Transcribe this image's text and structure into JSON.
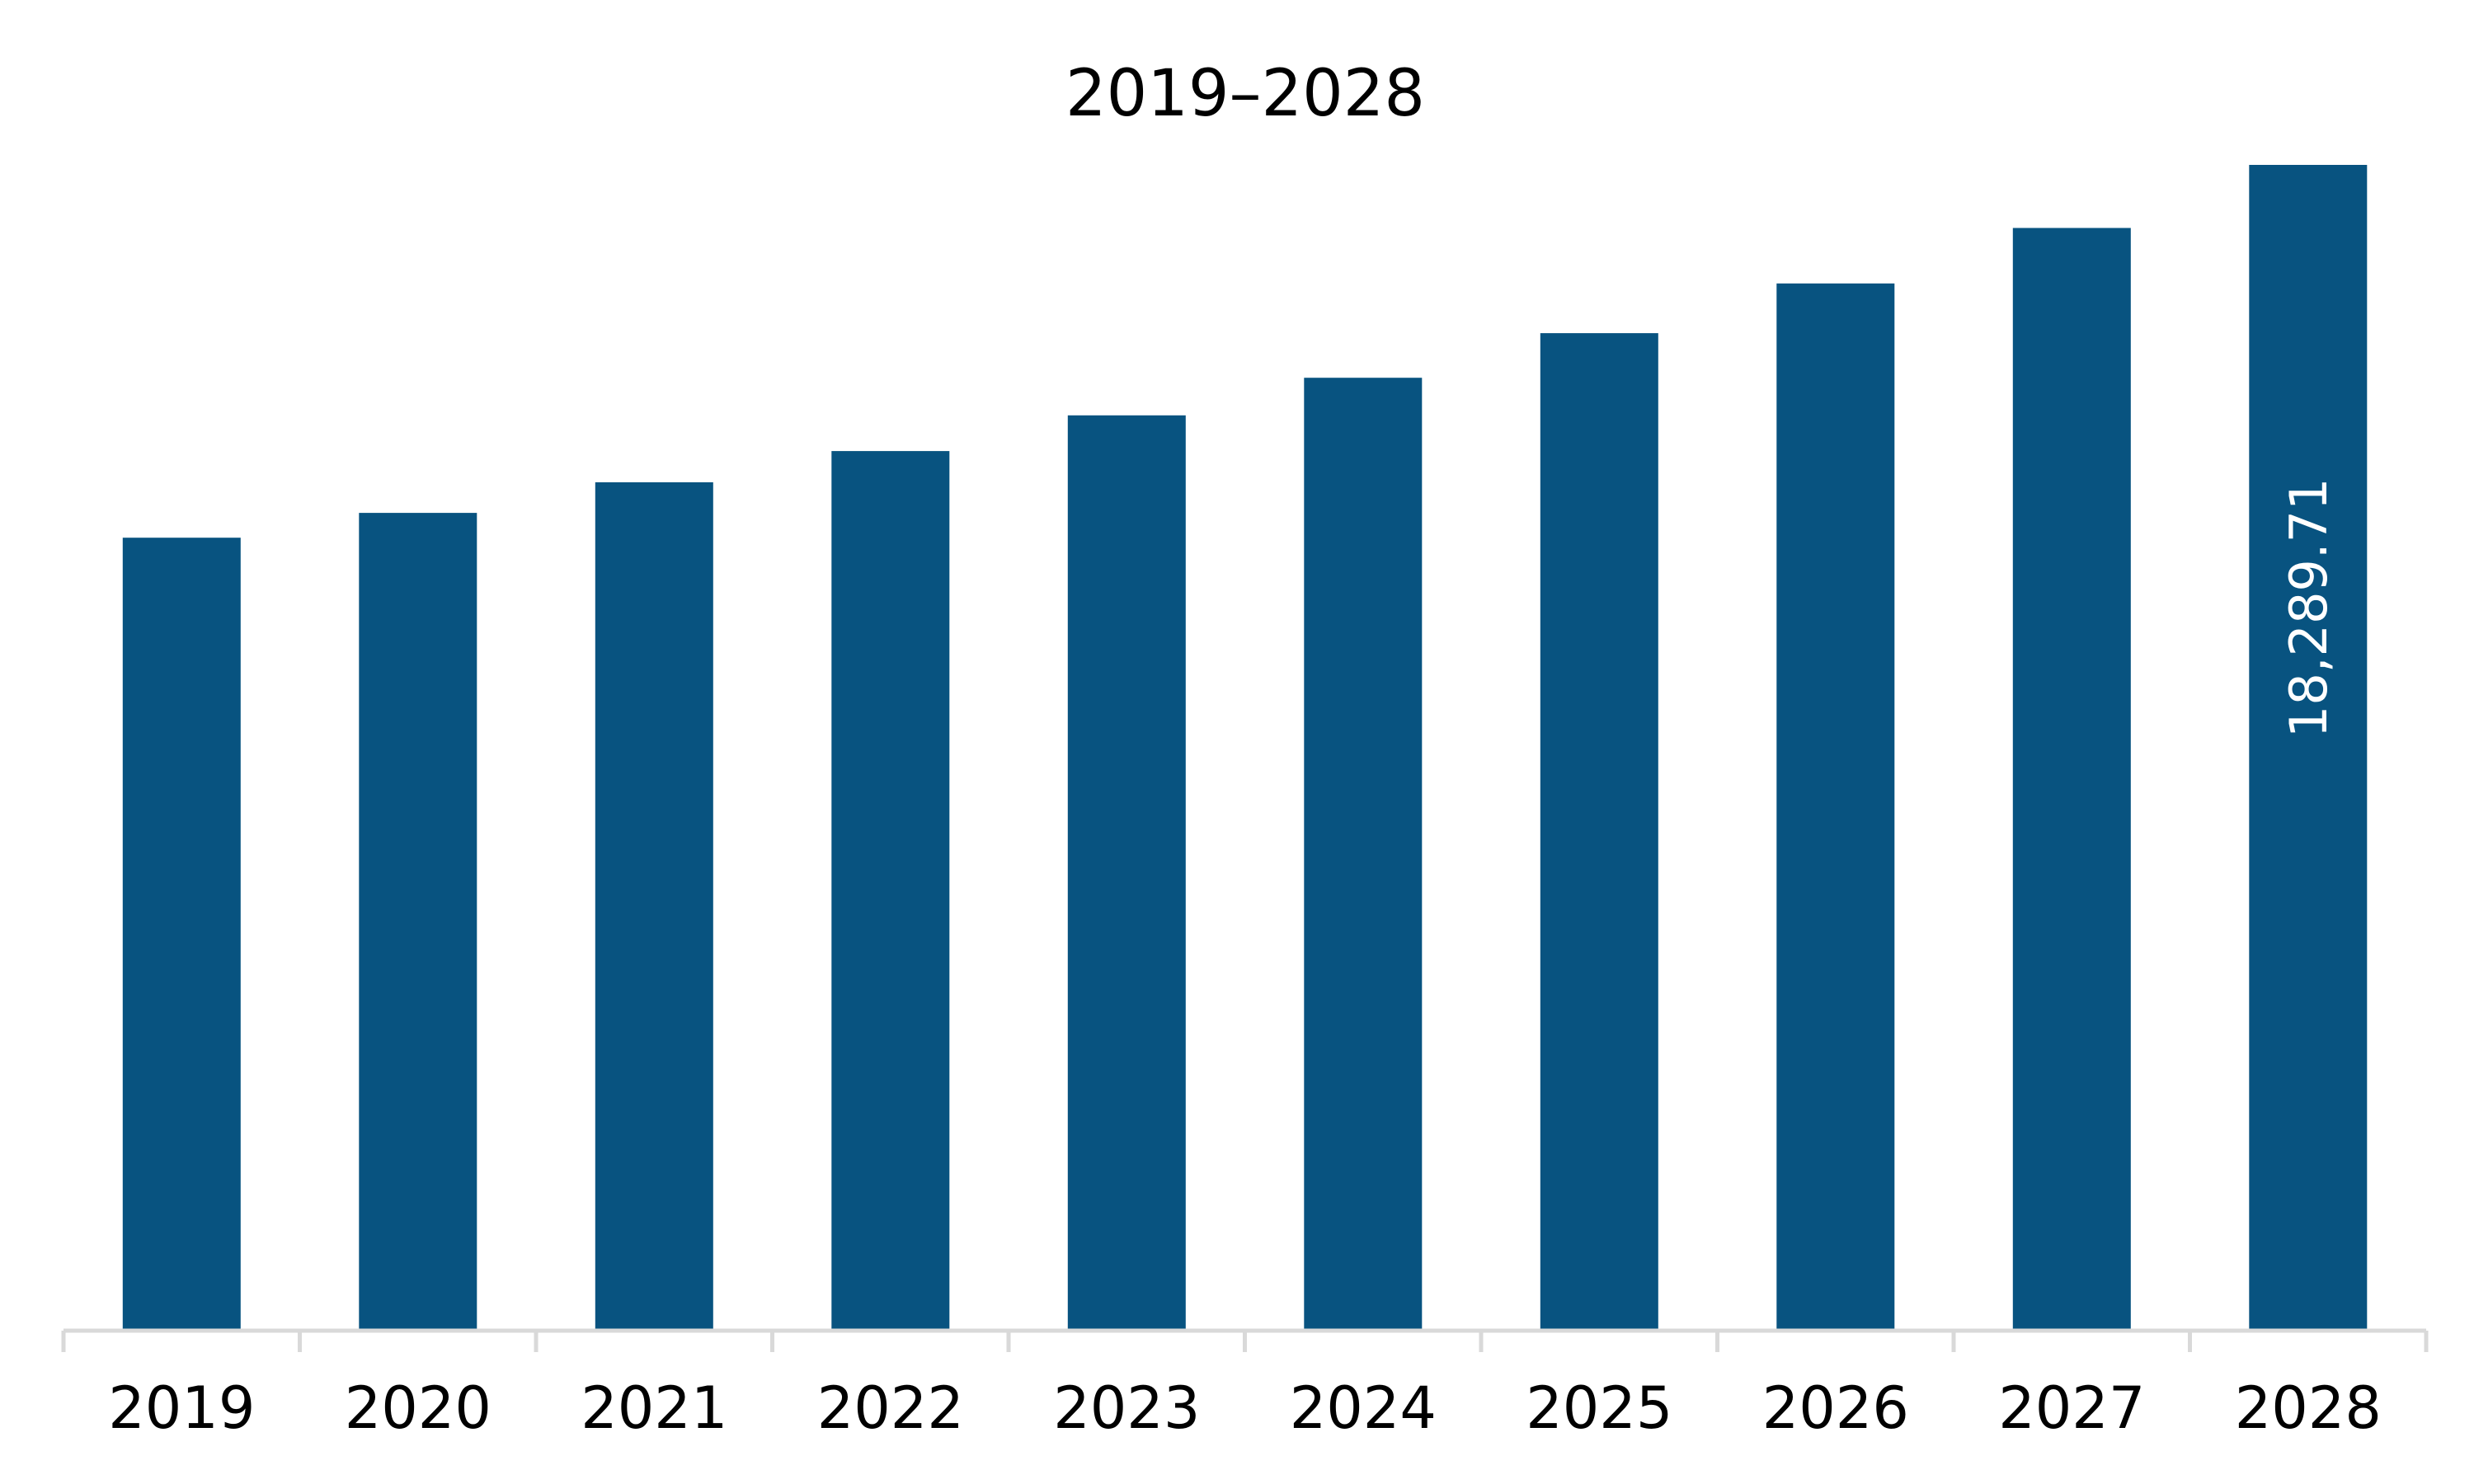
{
  "chart_data": {
    "type": "bar",
    "title": "2019–2028",
    "categories": [
      "2019",
      "2020",
      "2021",
      "2022",
      "2023",
      "2024",
      "2025",
      "2026",
      "2027",
      "2028"
    ],
    "values": [
      12440,
      12830,
      13310,
      13800,
      14360,
      14950,
      15650,
      16430,
      17300,
      18289.71
    ],
    "data_labels": [
      {
        "category": "2028",
        "text": "18,289.71",
        "orientation": "vertical"
      }
    ],
    "ylim": [
      0,
      18289.71
    ],
    "xlabel": "",
    "ylabel": "",
    "grid": false,
    "legend": "none",
    "colors": {
      "bar": "#085380",
      "axis": "#d9d9d9",
      "label_inside": "#ffffff"
    }
  }
}
